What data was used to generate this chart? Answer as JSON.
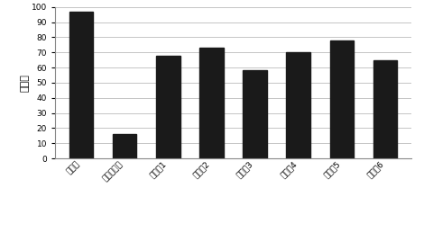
{
  "categories": [
    "试验组",
    "载体对照组",
    "对照组1",
    "对照组2",
    "对照组3",
    "对照组4",
    "对照组5",
    "对照组6"
  ],
  "values": [
    97,
    16,
    68,
    73,
    58,
    70,
    78,
    65
  ],
  "bar_color": "#1a1a1a",
  "ylabel": "百分比",
  "ylim": [
    0,
    100
  ],
  "yticks": [
    0,
    10,
    20,
    30,
    40,
    50,
    60,
    70,
    80,
    90,
    100
  ],
  "background_color": "#ffffff",
  "grid_color": "#bbbbbb",
  "bar_width": 0.55,
  "tick_fontsize": 6.5,
  "ylabel_fontsize": 8,
  "xtick_rotation": 45
}
